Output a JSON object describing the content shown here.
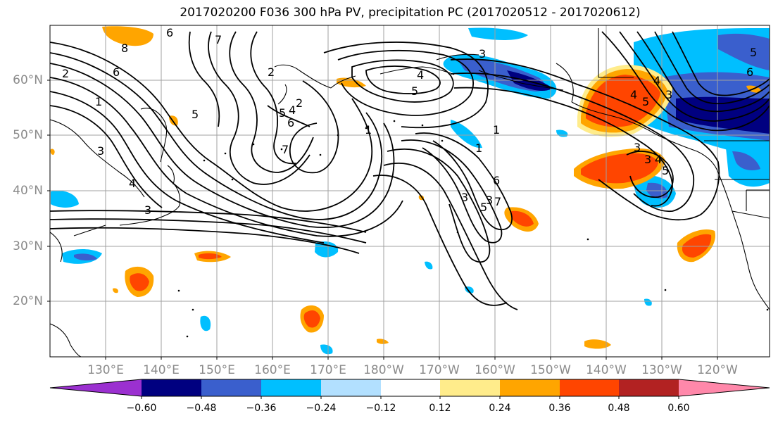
{
  "title": "2017020200 F036 300 hPa PV, precipitation PC (2017020512 - 2017020612)",
  "lat_labels": [
    "60°N",
    "50°N",
    "40°N",
    "30°N",
    "20°N"
  ],
  "lon_labels": [
    "130°E",
    "140°E",
    "150°E",
    "160°E",
    "170°E",
    "180°W",
    "170°W",
    "160°W",
    "150°W",
    "140°W",
    "130°W",
    "120°W"
  ],
  "contour_labels": [
    "6",
    "8",
    "7",
    "6",
    "2",
    "1",
    "3",
    "4",
    "3",
    "5",
    "2",
    "5",
    "4",
    "6",
    "7",
    "4",
    "5",
    "1",
    "2",
    "3",
    "6",
    "5",
    "4",
    "3",
    "1",
    "4",
    "3",
    "5",
    "1",
    "6",
    "3",
    "5",
    "7",
    "3",
    "3",
    "4",
    "5"
  ],
  "colorbar": {
    "colors": [
      "#9b30d0",
      "#000080",
      "#3a5fcd",
      "#00bfff",
      "#b2e0ff",
      "#ffffff",
      "#ffec8b",
      "#ffa500",
      "#ff4500",
      "#b22222",
      "#ff88aa"
    ],
    "ticks": [
      "−0.60",
      "−0.48",
      "−0.36",
      "−0.24",
      "−0.12",
      "0.12",
      "0.24",
      "0.36",
      "0.48",
      "0.60"
    ]
  },
  "colors": {
    "land_outline": "#000000",
    "grid": "#a0a0a0",
    "contour": "#000000"
  }
}
